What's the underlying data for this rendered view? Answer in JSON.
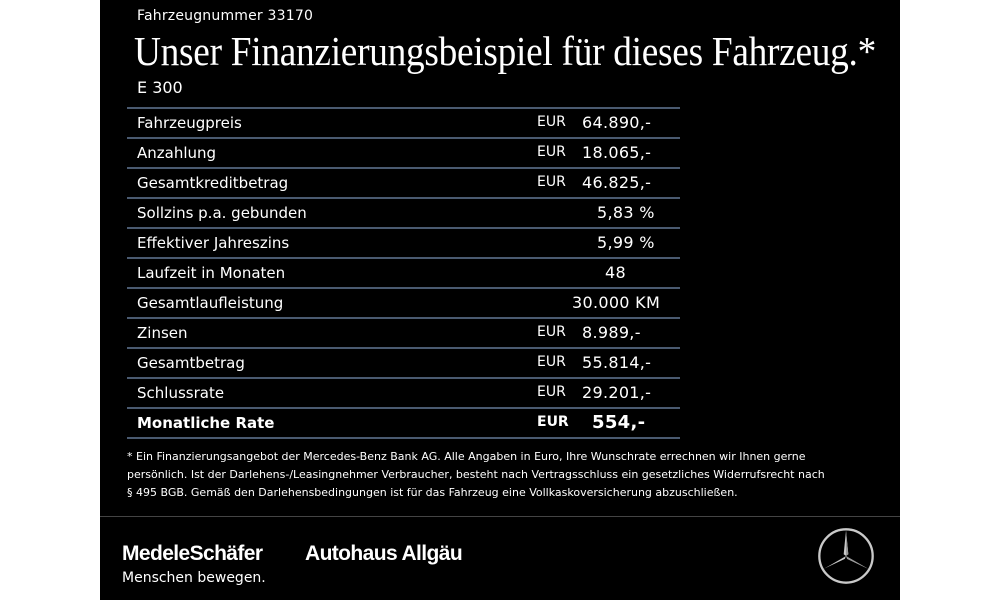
{
  "vehicle_number": "Fahrzeugnummer 33170",
  "headline": "Unser Finanzierungsbeispiel für dieses Fahrzeug.*",
  "model": "E 300",
  "rows": [
    {
      "label": "Fahrzeugpreis",
      "currency": "EUR",
      "value": "64.890,-"
    },
    {
      "label": "Anzahlung",
      "currency": "EUR",
      "value": "18.065,-"
    },
    {
      "label": "Gesamtkreditbetrag",
      "currency": "EUR",
      "value": "46.825,-"
    },
    {
      "label": "Sollzins p.a. gebunden",
      "currency": "",
      "value": "5,83 %"
    },
    {
      "label": "Effektiver Jahreszins",
      "currency": "",
      "value": "5,99 %"
    },
    {
      "label": "Laufzeit in Monaten",
      "currency": "",
      "value": "48"
    },
    {
      "label": "Gesamtlaufleistung",
      "currency": "",
      "value": "30.000 KM"
    },
    {
      "label": "Zinsen",
      "currency": "EUR",
      "value": "8.989,-"
    },
    {
      "label": "Gesamtbetrag",
      "currency": "EUR",
      "value": "55.814,-"
    },
    {
      "label": "Schlussrate",
      "currency": "EUR",
      "value": "29.201,-"
    },
    {
      "label": "Monatliche Rate",
      "currency": "EUR",
      "value": "554,-"
    }
  ],
  "footnote": {
    "line1": "* Ein Finanzierungsangebot der Mercedes-Benz Bank AG. Alle Angaben in Euro, Ihre Wunschrate errechnen wir Ihnen gerne",
    "line2": "persönlich. Ist der Darlehens-/Leasingnehmer Verbraucher, besteht nach Vertragsschluss ein gesetzliches Widerrufsrecht nach",
    "line3": "§ 495 BGB. Gemäß den Darlehensbedingungen ist für das Fahrzeug eine Vollkaskoversicherung abzuschließen."
  },
  "footer": {
    "brand_1": "MedeleSchäfer",
    "tagline": "Menschen bewegen.",
    "brand_2": "Autohaus Allgäu",
    "logo_icon": "mercedes-star-icon"
  },
  "colors": {
    "background": "#000000",
    "text": "#ffffff",
    "row_rule": "#4a5a70"
  }
}
